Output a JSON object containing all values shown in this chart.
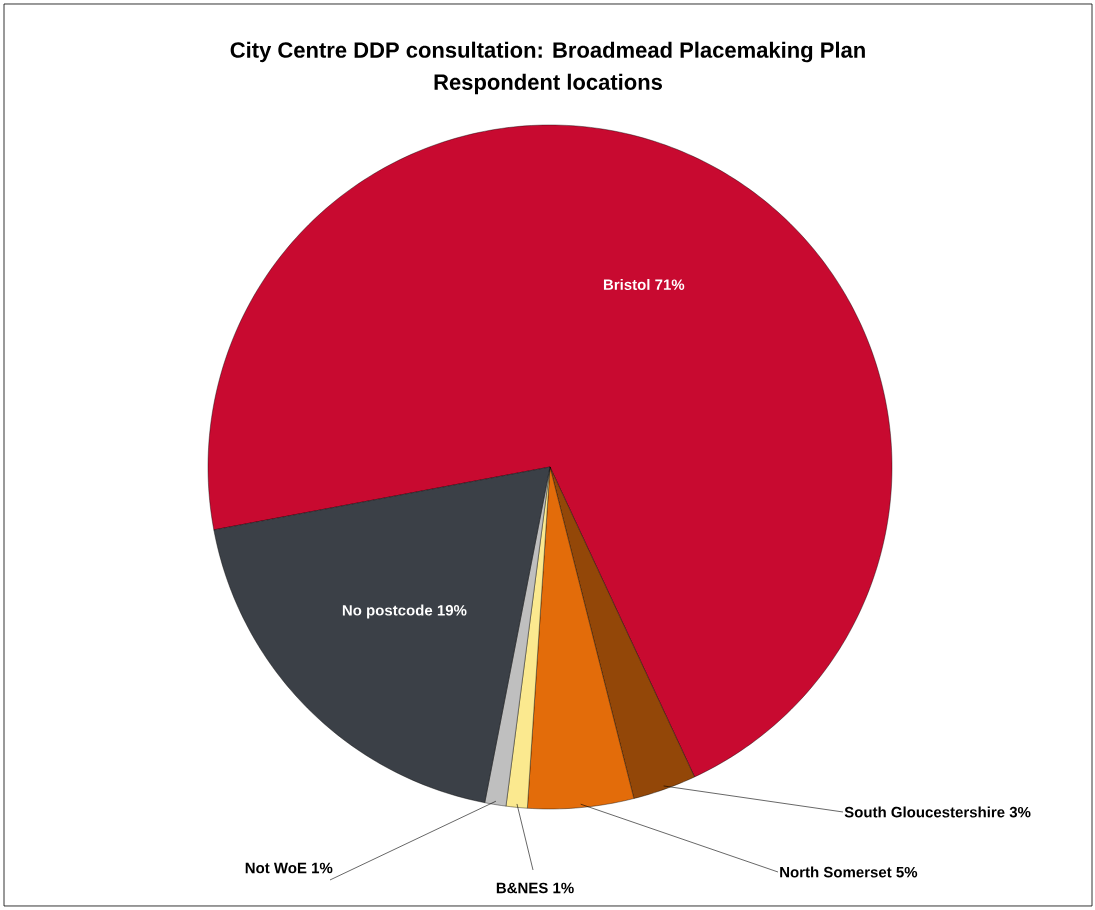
{
  "chart_data": {
    "type": "pie",
    "title": "City Centre DDP consultation: Broadmead Placemaking Plan",
    "subtitle": "Respondent locations",
    "categories": [
      "Bristol",
      "South Gloucestershire",
      "North Somerset",
      "B&NES",
      "Not WoE",
      "No postcode"
    ],
    "values": [
      71,
      3,
      5,
      1,
      1,
      19
    ],
    "value_labels": [
      "71%",
      "3%",
      "5%",
      "1%",
      "1%",
      "19%"
    ],
    "colors": [
      "#c80a30",
      "#934708",
      "#e36c0a",
      "#fbe98f",
      "#bfbfbf",
      "#3b4047"
    ]
  }
}
